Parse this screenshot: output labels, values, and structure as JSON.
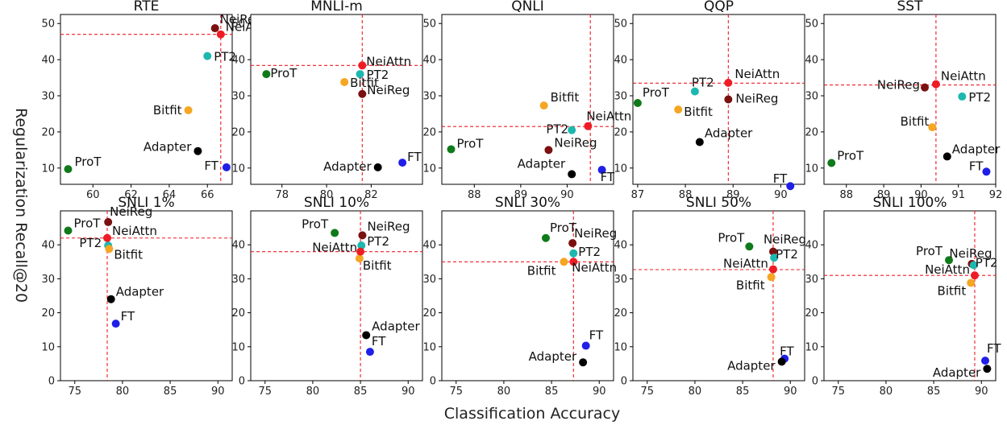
{
  "figure": {
    "xlabel": "Classification Accuracy",
    "ylabel": "Regularization Recall@20",
    "colors": {
      "NeiReg": "#7b1010",
      "NeiAttn": "#ee1c25",
      "PT2": "#1cb8b0",
      "Bitfit": "#f5a623",
      "Adapter": "#000000",
      "FT": "#1f1fe8",
      "ProT": "#0f7a1a",
      "refline": "#ee1c25"
    }
  },
  "chart_data": [
    {
      "type": "scatter",
      "title": "RTE",
      "xlim": [
        58.3,
        67.3
      ],
      "ylim": [
        5.5,
        52.5
      ],
      "xticks": [
        60,
        62,
        64,
        66
      ],
      "yticks": [
        10,
        20,
        30,
        40,
        50
      ],
      "vline": 66.7,
      "hline": 47,
      "points": [
        {
          "label": "NeiReg",
          "x": 66.4,
          "y": 48.7
        },
        {
          "label": "NeiAttn",
          "x": 66.7,
          "y": 47.0
        },
        {
          "label": "PT2",
          "x": 66.0,
          "y": 41.0
        },
        {
          "label": "Bitfit",
          "x": 65.0,
          "y": 26.0
        },
        {
          "label": "Adapter",
          "x": 65.5,
          "y": 14.7
        },
        {
          "label": "FT",
          "x": 67.0,
          "y": 10.2
        },
        {
          "label": "ProT",
          "x": 58.7,
          "y": 9.7
        }
      ]
    },
    {
      "type": "scatter",
      "title": "MNLI-m",
      "xlim": [
        76.6,
        84.3
      ],
      "ylim": [
        5.5,
        52.5
      ],
      "xticks": [
        78,
        80,
        82
      ],
      "yticks": [
        10,
        20,
        30,
        40,
        50
      ],
      "vline": 81.6,
      "hline": 38.4,
      "points": [
        {
          "label": "NeiAttn",
          "x": 81.6,
          "y": 38.4
        },
        {
          "label": "PT2",
          "x": 81.5,
          "y": 36.0
        },
        {
          "label": "ProT",
          "x": 77.3,
          "y": 36.0
        },
        {
          "label": "Bitfit",
          "x": 80.8,
          "y": 33.8
        },
        {
          "label": "NeiReg",
          "x": 81.6,
          "y": 30.5
        },
        {
          "label": "FT",
          "x": 83.4,
          "y": 11.5
        },
        {
          "label": "Adapter",
          "x": 82.3,
          "y": 10.2
        }
      ]
    },
    {
      "type": "scatter",
      "title": "QNLI",
      "xlim": [
        87.3,
        91.0
      ],
      "ylim": [
        5.5,
        52.5
      ],
      "xticks": [
        88,
        89,
        90
      ],
      "yticks": [
        10,
        20,
        30,
        40,
        50
      ],
      "vline": 90.5,
      "hline": 21.5,
      "points": [
        {
          "label": "Bitfit",
          "x": 89.5,
          "y": 27.3
        },
        {
          "label": "NeiAttn",
          "x": 90.45,
          "y": 21.6
        },
        {
          "label": "PT2",
          "x": 90.1,
          "y": 20.5
        },
        {
          "label": "ProT",
          "x": 87.5,
          "y": 15.2
        },
        {
          "label": "NeiReg",
          "x": 89.6,
          "y": 15.0
        },
        {
          "label": "FT",
          "x": 90.75,
          "y": 9.5
        },
        {
          "label": "Adapter",
          "x": 90.1,
          "y": 8.3
        }
      ]
    },
    {
      "type": "scatter",
      "title": "QQP",
      "xlim": [
        86.9,
        90.5
      ],
      "ylim": [
        5.5,
        52.5
      ],
      "xticks": [
        87,
        88,
        89,
        90
      ],
      "yticks": [
        10,
        20,
        30,
        40,
        50
      ],
      "vline": 88.9,
      "hline": 33.5,
      "points": [
        {
          "label": "NeiAttn",
          "x": 88.9,
          "y": 33.6
        },
        {
          "label": "PT2",
          "x": 88.2,
          "y": 31.2
        },
        {
          "label": "NeiReg",
          "x": 88.9,
          "y": 29.0
        },
        {
          "label": "ProT",
          "x": 87.0,
          "y": 28.0
        },
        {
          "label": "Bitfit",
          "x": 87.85,
          "y": 26.2
        },
        {
          "label": "Adapter",
          "x": 88.3,
          "y": 17.2
        },
        {
          "label": "FT",
          "x": 90.2,
          "y": 5.0
        }
      ]
    },
    {
      "type": "scatter",
      "title": "SST",
      "xlim": [
        87.4,
        92.0
      ],
      "ylim": [
        5.5,
        52.5
      ],
      "xticks": [
        88,
        89,
        90,
        91,
        92
      ],
      "yticks": [
        10,
        20,
        30,
        40,
        50
      ],
      "vline": 90.4,
      "hline": 33.0,
      "points": [
        {
          "label": "NeiAttn",
          "x": 90.4,
          "y": 33.2
        },
        {
          "label": "NeiReg",
          "x": 90.1,
          "y": 32.3
        },
        {
          "label": "PT2",
          "x": 91.1,
          "y": 29.8
        },
        {
          "label": "Bitfit",
          "x": 90.3,
          "y": 21.3
        },
        {
          "label": "Adapter",
          "x": 90.7,
          "y": 13.2
        },
        {
          "label": "ProT",
          "x": 87.6,
          "y": 11.4
        },
        {
          "label": "FT",
          "x": 91.75,
          "y": 9.0
        }
      ]
    },
    {
      "type": "scatter",
      "title": "SNLI 1%",
      "xlim": [
        73.5,
        91.5
      ],
      "ylim": [
        0,
        50
      ],
      "xticks": [
        75,
        80,
        85,
        90
      ],
      "yticks": [
        0,
        10,
        20,
        30,
        40
      ],
      "vline": 78.4,
      "hline": 42.0,
      "points": [
        {
          "label": "NeiReg",
          "x": 78.5,
          "y": 46.7
        },
        {
          "label": "ProT",
          "x": 74.3,
          "y": 44.2
        },
        {
          "label": "NeiAttn",
          "x": 78.4,
          "y": 42.0
        },
        {
          "label": "PT2",
          "x": 78.5,
          "y": 39.8
        },
        {
          "label": "Bitfit",
          "x": 78.6,
          "y": 38.8
        },
        {
          "label": "Adapter",
          "x": 78.8,
          "y": 24.0
        },
        {
          "label": "FT",
          "x": 79.3,
          "y": 16.8
        }
      ]
    },
    {
      "type": "scatter",
      "title": "SNLI 10%",
      "xlim": [
        73.5,
        91.5
      ],
      "ylim": [
        0,
        50
      ],
      "xticks": [
        75,
        80,
        85,
        90
      ],
      "yticks": [
        0,
        10,
        20,
        30,
        40
      ],
      "vline": 85.0,
      "hline": 38.0,
      "points": [
        {
          "label": "ProT",
          "x": 82.3,
          "y": 43.5
        },
        {
          "label": "NeiReg",
          "x": 85.2,
          "y": 42.8
        },
        {
          "label": "PT2",
          "x": 85.1,
          "y": 39.8
        },
        {
          "label": "NeiAttn",
          "x": 85.0,
          "y": 38.0
        },
        {
          "label": "Bitfit",
          "x": 84.9,
          "y": 36.0
        },
        {
          "label": "Adapter",
          "x": 85.6,
          "y": 13.4
        },
        {
          "label": "FT",
          "x": 86.0,
          "y": 8.5
        }
      ]
    },
    {
      "type": "scatter",
      "title": "SNLI 30%",
      "xlim": [
        73.5,
        91.5
      ],
      "ylim": [
        0,
        50
      ],
      "xticks": [
        75,
        80,
        85,
        90
      ],
      "yticks": [
        0,
        10,
        20,
        30,
        40
      ],
      "vline": 87.3,
      "hline": 35.0,
      "points": [
        {
          "label": "ProT",
          "x": 84.4,
          "y": 42.0
        },
        {
          "label": "NeiReg",
          "x": 87.2,
          "y": 40.5
        },
        {
          "label": "PT2",
          "x": 87.3,
          "y": 37.5
        },
        {
          "label": "Bitfit",
          "x": 86.3,
          "y": 35.0
        },
        {
          "label": "NeiAttn",
          "x": 87.3,
          "y": 35.0
        },
        {
          "label": "FT",
          "x": 88.6,
          "y": 10.3
        },
        {
          "label": "Adapter",
          "x": 88.3,
          "y": 5.4
        }
      ]
    },
    {
      "type": "scatter",
      "title": "SNLI 50%",
      "xlim": [
        73.5,
        91.5
      ],
      "ylim": [
        0,
        50
      ],
      "xticks": [
        75,
        80,
        85,
        90
      ],
      "yticks": [
        0,
        10,
        20,
        30,
        40
      ],
      "vline": 88.2,
      "hline": 32.7,
      "points": [
        {
          "label": "ProT",
          "x": 85.7,
          "y": 39.5
        },
        {
          "label": "NeiReg",
          "x": 88.2,
          "y": 38.0
        },
        {
          "label": "PT2",
          "x": 88.3,
          "y": 36.2
        },
        {
          "label": "NeiAttn",
          "x": 88.2,
          "y": 32.8
        },
        {
          "label": "Bitfit",
          "x": 88.0,
          "y": 30.5
        },
        {
          "label": "FT",
          "x": 89.4,
          "y": 6.5
        },
        {
          "label": "Adapter",
          "x": 89.1,
          "y": 5.6
        }
      ]
    },
    {
      "type": "scatter",
      "title": "SNLI 100%",
      "xlim": [
        73.5,
        91.5
      ],
      "ylim": [
        0,
        50
      ],
      "xticks": [
        75,
        80,
        85,
        90
      ],
      "yticks": [
        0,
        10,
        20,
        30,
        40
      ],
      "vline": 89.3,
      "hline": 31.0,
      "points": [
        {
          "label": "ProT",
          "x": 86.6,
          "y": 35.5
        },
        {
          "label": "NeiReg",
          "x": 89.0,
          "y": 34.4
        },
        {
          "label": "PT2",
          "x": 89.2,
          "y": 34.0
        },
        {
          "label": "NeiAttn",
          "x": 89.3,
          "y": 31.0
        },
        {
          "label": "Bitfit",
          "x": 88.9,
          "y": 28.8
        },
        {
          "label": "FT",
          "x": 90.4,
          "y": 5.9
        },
        {
          "label": "Adapter",
          "x": 90.6,
          "y": 3.5
        }
      ]
    }
  ]
}
